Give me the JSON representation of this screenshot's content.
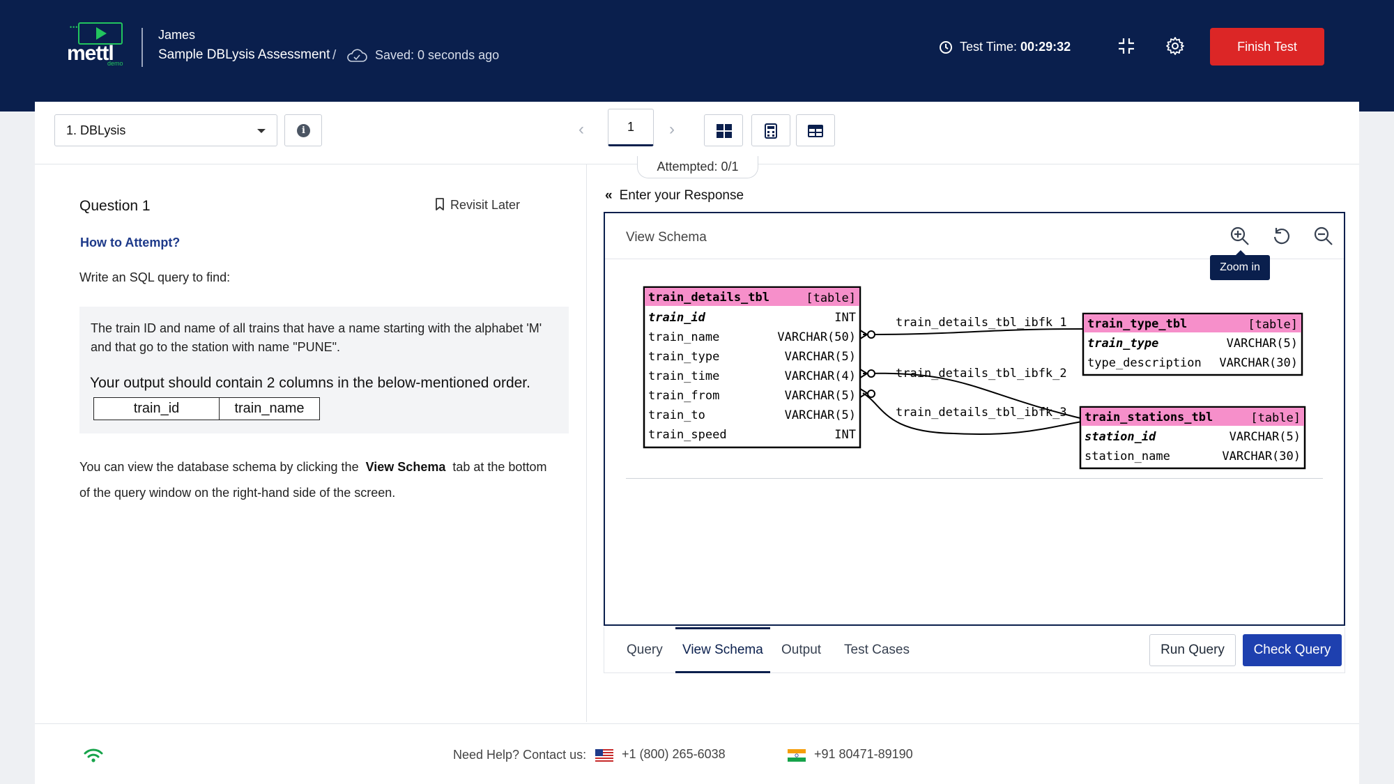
{
  "header": {
    "logo_text": "mettl",
    "logo_sub": "demo",
    "user_name": "James",
    "assessment_title": "Sample DBLysis Assessment",
    "separator": "/",
    "saved_status": "Saved: 0 seconds ago",
    "test_time_label": "Test Time:",
    "test_time_value": "00:29:32",
    "finish_label": "Finish Test"
  },
  "toolbar": {
    "section_value": "1. DBLysis",
    "page_number": "1",
    "attempted": "Attempted: 0/1"
  },
  "question": {
    "title": "Question 1",
    "revisit_label": "Revisit Later",
    "how_to": "How to Attempt?",
    "intro": "Write an SQL query to find:",
    "description": "The train ID and name of all trains that have a name starting with the alphabet 'M' and that go to the station with name \"PUNE\".",
    "output_note": "Your output should contain 2 columns in the below-mentioned order.",
    "columns": [
      "train_id",
      "train_name"
    ],
    "view_note_before": "You can view the database schema by clicking the",
    "view_note_bold": "View Schema",
    "view_note_after": "tab at the bottom of the query window on the right-hand side of the screen."
  },
  "response": {
    "title": "Enter your Response",
    "schema_label": "View Schema",
    "tooltip": "Zoom in"
  },
  "schema": {
    "tables": [
      {
        "name": "train_details_tbl",
        "tag": "[table]",
        "columns": [
          {
            "name": "train_id",
            "type": "INT",
            "key": true
          },
          {
            "name": "train_name",
            "type": "VARCHAR(50)"
          },
          {
            "name": "train_type",
            "type": "VARCHAR(5)"
          },
          {
            "name": "train_time",
            "type": "VARCHAR(4)"
          },
          {
            "name": "train_from",
            "type": "VARCHAR(5)"
          },
          {
            "name": "train_to",
            "type": "VARCHAR(5)"
          },
          {
            "name": "train_speed",
            "type": "INT"
          }
        ]
      },
      {
        "name": "train_type_tbl",
        "tag": "[table]",
        "columns": [
          {
            "name": "train_type",
            "type": "VARCHAR(5)",
            "key": true
          },
          {
            "name": "type_description",
            "type": "VARCHAR(30)"
          }
        ]
      },
      {
        "name": "train_stations_tbl",
        "tag": "[table]",
        "columns": [
          {
            "name": "station_id",
            "type": "VARCHAR(5)",
            "key": true
          },
          {
            "name": "station_name",
            "type": "VARCHAR(30)"
          }
        ]
      }
    ],
    "relations": [
      "train_details_tbl_ibfk_1",
      "train_details_tbl_ibfk_2",
      "train_details_tbl_ibfk_3"
    ]
  },
  "tabs": [
    {
      "label": "Query"
    },
    {
      "label": "View Schema"
    },
    {
      "label": "Output"
    },
    {
      "label": "Test Cases"
    }
  ],
  "actions": {
    "run": "Run Query",
    "check": "Check Query"
  },
  "footer": {
    "help": "Need Help? Contact us:",
    "us_phone": "+1 (800) 265-6038",
    "in_phone": "+91 80471-89190"
  },
  "colors": {
    "header_bg": "#0a1f4d",
    "finish_btn": "#dc2626",
    "check_btn": "#1e40af",
    "table_header": "#f68fca",
    "wifi": "#16a34a"
  }
}
